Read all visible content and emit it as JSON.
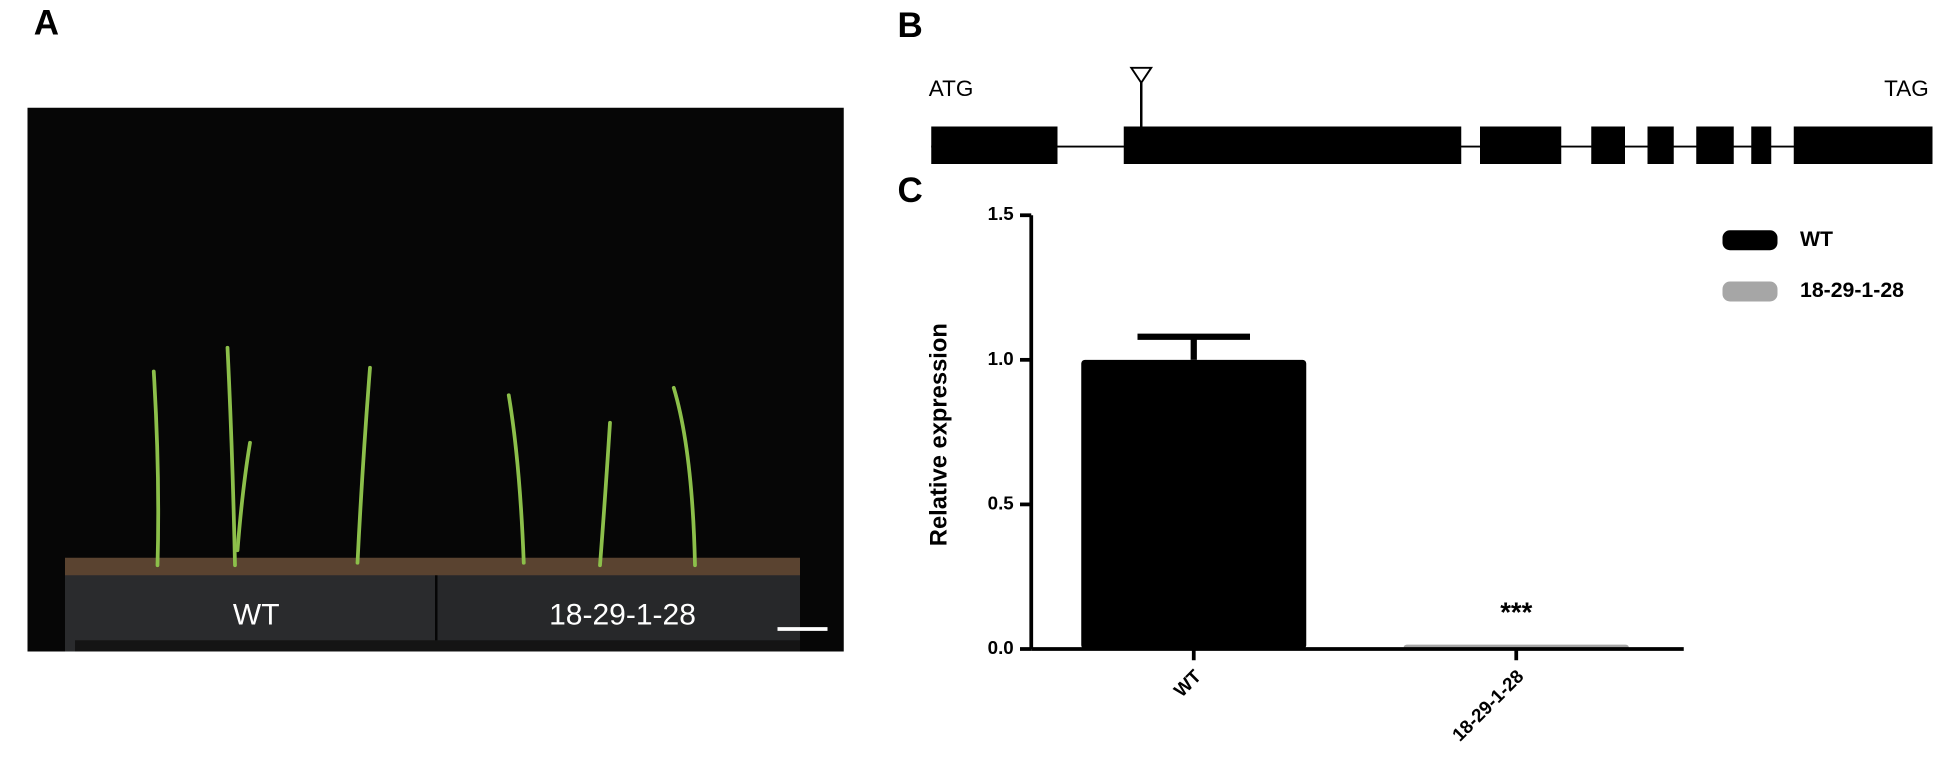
{
  "panel_labels": [
    "A",
    "B",
    "C"
  ],
  "photo": {
    "labels": [
      "WT",
      "18-29-1-28"
    ]
  },
  "gene": {
    "start": "ATG",
    "end": "TAG"
  },
  "chart_data": {
    "type": "bar",
    "ylabel": "Relative expression",
    "categories": [
      "WT",
      "18-29-1-28"
    ],
    "series": [
      {
        "name": "WT",
        "color": "#000000",
        "values": [
          1.0,
          null
        ],
        "errors": [
          0.08,
          null
        ]
      },
      {
        "name": "18-29-1-28",
        "color": "#a6a6a6",
        "values": [
          null,
          0.015
        ]
      }
    ],
    "annotations": [
      null,
      "***"
    ],
    "ylim": [
      0,
      1.5
    ],
    "yticks": [
      {
        "value": 0,
        "label": "0.0"
      },
      {
        "value": 0.5,
        "label": "0.5"
      },
      {
        "value": 1,
        "label": "1.0"
      },
      {
        "value": 1.5,
        "label": "1.5"
      }
    ]
  }
}
